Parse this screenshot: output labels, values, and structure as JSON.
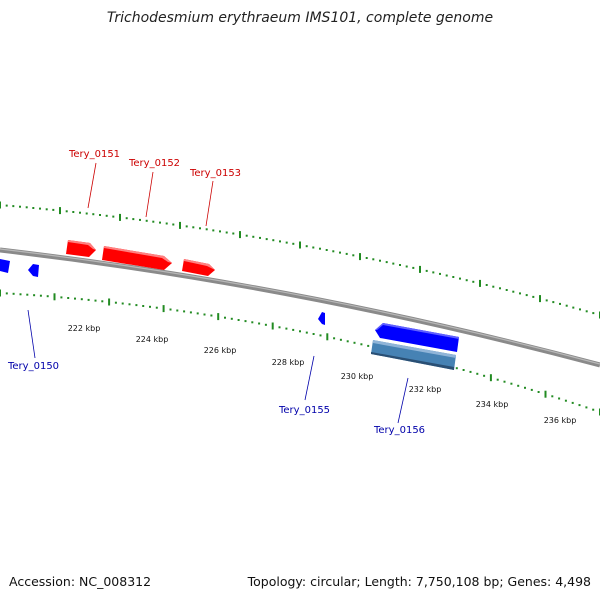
{
  "title": "Trichodesmium erythraeum IMS101, complete genome",
  "footer": {
    "accession": "Accession: NC_008312",
    "summary": "Topology: circular; Length: 7,750,108 bp; Genes: 4,498"
  },
  "colors": {
    "forward_gene": "#ff0000",
    "reverse_gene": "#0000ff",
    "reverse_gene_alt": "#4682b4",
    "backbone": "#8a8a8a",
    "ruler": "#228b22",
    "forward_label": "#cc0000",
    "reverse_label": "#0000aa"
  },
  "scale_labels": [
    "222 kbp",
    "224 kbp",
    "226 kbp",
    "228 kbp",
    "230 kbp",
    "232 kbp",
    "234 kbp",
    "236 kbp"
  ],
  "genes": [
    {
      "label": "Tery_0150",
      "strand": "reverse",
      "icon": "arrow-left-icon"
    },
    {
      "label": "Tery_0151",
      "strand": "forward",
      "icon": "arrow-right-icon"
    },
    {
      "label": "Tery_0152",
      "strand": "forward",
      "icon": "arrow-right-icon"
    },
    {
      "label": "Tery_0153",
      "strand": "forward",
      "icon": "arrow-right-icon"
    },
    {
      "label": "Tery_0155",
      "strand": "reverse",
      "icon": "arrow-left-icon"
    },
    {
      "label": "Tery_0156",
      "strand": "reverse",
      "icon": "arrow-left-icon"
    }
  ]
}
